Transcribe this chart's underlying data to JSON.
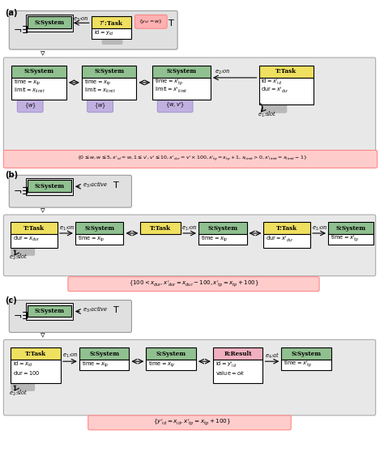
{
  "bg_color": "#f5f5f5",
  "white": "#ffffff",
  "yellow_header": "#f0e060",
  "green_body": "#90c090",
  "pink_result": "#f0b0c0",
  "purple_label": "#c0b0e0",
  "gray_slot": "#b8b8b8",
  "pink_condition": "#ffcccc",
  "section_a_label": "(a)",
  "section_b_label": "(b)",
  "section_c_label": "(c)"
}
